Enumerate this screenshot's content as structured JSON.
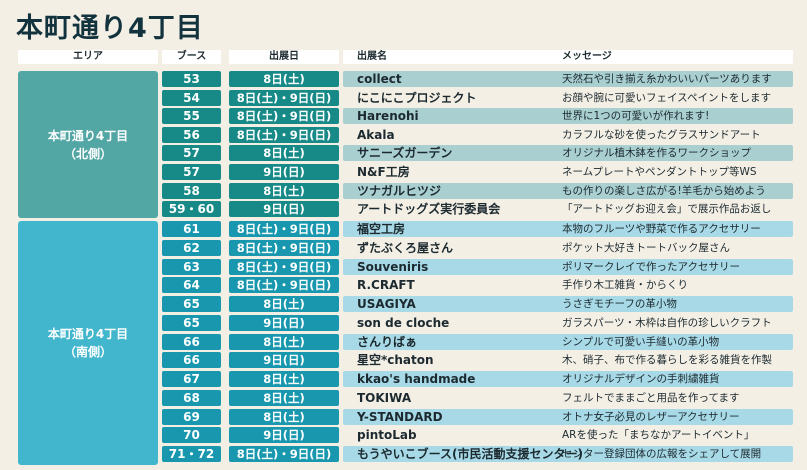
{
  "title": "本町通り4丁目",
  "headers": {
    "area": "エリア",
    "booth": "ブース",
    "date": "出展日",
    "name": "出展名",
    "message": "メッセージ"
  },
  "colors": {
    "north_area": "#52a6a4",
    "north_cell": "#178a88",
    "north_stripe": "#a9cfd0",
    "south_area": "#42b6cc",
    "south_cell": "#1897ae",
    "south_stripe": "#a8d9e6"
  },
  "areas": [
    {
      "line1": "本町通り4丁目",
      "line2": "（北側）"
    },
    {
      "line1": "本町通り4丁目",
      "line2": "（南側）"
    }
  ],
  "rows": [
    {
      "area": 0,
      "booth": "53",
      "date": "8日(土)",
      "name": "collect",
      "message": "天然石や引き揃え糸かわいいパーツあります"
    },
    {
      "area": 0,
      "booth": "54",
      "date": "8日(土)・9日(日)",
      "name": "にこにこプロジェクト",
      "message": "お顔や腕に可愛いフェイスペイントをします"
    },
    {
      "area": 0,
      "booth": "55",
      "date": "8日(土)・9日(日)",
      "name": "Harenohi",
      "message": "世界に1つの可愛いが作れます!"
    },
    {
      "area": 0,
      "booth": "56",
      "date": "8日(土)・9日(日)",
      "name": "Akala",
      "message": "カラフルな砂を使ったグラスサンドアート"
    },
    {
      "area": 0,
      "booth": "57",
      "date": "8日(土)",
      "name": "サニーズガーデン",
      "message": "オリジナル植木鉢を作るワークショップ"
    },
    {
      "area": 0,
      "booth": "57",
      "date": "9日(日)",
      "name": "N&F工房",
      "message": "ネームプレートやペンダントトップ等WS"
    },
    {
      "area": 0,
      "booth": "58",
      "date": "8日(土)",
      "name": "ツナガルヒツジ",
      "message": "もの作りの楽しさ広がる!羊毛から始めよう"
    },
    {
      "area": 0,
      "booth": "59・60",
      "date": "9日(日)",
      "name": "アートドッグズ実行委員会",
      "message": "「アートドッグお迎え会」で展示作品お返し"
    },
    {
      "area": 1,
      "booth": "61",
      "date": "8日(土)・9日(日)",
      "name": "福空工房",
      "message": "本物のフルーツや野菜で作るアクセサリー"
    },
    {
      "area": 1,
      "booth": "62",
      "date": "8日(土)・9日(日)",
      "name": "ずたぶくろ屋さん",
      "message": "ポケット大好きトートバック屋さん"
    },
    {
      "area": 1,
      "booth": "63",
      "date": "8日(土)・9日(日)",
      "name": "Souveniris",
      "message": "ポリマークレイで作ったアクセサリー"
    },
    {
      "area": 1,
      "booth": "64",
      "date": "8日(土)・9日(日)",
      "name": "R.CRAFT",
      "message": "手作り木工雑貨・からくり"
    },
    {
      "area": 1,
      "booth": "65",
      "date": "8日(土)",
      "name": "USAGIYA",
      "message": "うさぎモチーフの革小物"
    },
    {
      "area": 1,
      "booth": "65",
      "date": "9日(日)",
      "name": "son de cloche",
      "message": "ガラスパーツ・木枠は自作の珍しいクラフト"
    },
    {
      "area": 1,
      "booth": "66",
      "date": "8日(土)",
      "name": "さんりばぁ",
      "message": "シンプルで可愛い手縫いの革小物"
    },
    {
      "area": 1,
      "booth": "66",
      "date": "9日(日)",
      "name": "星空*chaton",
      "message": "木、硝子、布で作る暮らしを彩る雑貨を作製"
    },
    {
      "area": 1,
      "booth": "67",
      "date": "8日(土)",
      "name": "kkao's handmade",
      "message": "オリジナルデザインの手刺繍雑貨"
    },
    {
      "area": 1,
      "booth": "68",
      "date": "8日(土)",
      "name": "TOKIWA",
      "message": "フェルトでままごと用品を作ってます"
    },
    {
      "area": 1,
      "booth": "69",
      "date": "8日(土)",
      "name": "Y-STANDARD",
      "message": "オトナ女子必見のレザーアクセサリー"
    },
    {
      "area": 1,
      "booth": "70",
      "date": "9日(日)",
      "name": "pintoLab",
      "message": "ARを使った「まちなかアートイベント」"
    },
    {
      "area": 1,
      "booth": "71・72",
      "date": "8日(土)・9日(日)",
      "name": "もうやいこブース(市民活動支援センター)",
      "message": "センター登録団体の広報をシェアして展開"
    }
  ]
}
